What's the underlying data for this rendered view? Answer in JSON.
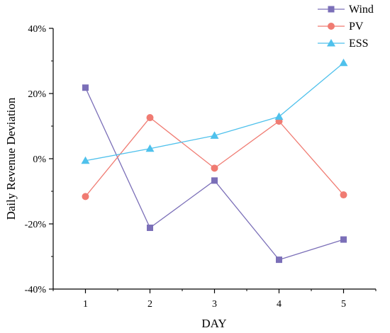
{
  "chart_data": {
    "type": "line",
    "x": [
      1,
      2,
      3,
      4,
      5
    ],
    "xticks": [
      "1",
      "2",
      "3",
      "4",
      "5"
    ],
    "xlim": [
      0.5,
      5.5
    ],
    "ylim": [
      -40,
      40
    ],
    "yticks": [
      "40%",
      "20%",
      "0%",
      "-20%",
      "-40%"
    ],
    "ytick_values": [
      40,
      20,
      0,
      -20,
      -40
    ],
    "xlabel": "DAY",
    "ylabel": "Daily Revenue Deviation",
    "grid": false,
    "legend_position": "top-right",
    "series": [
      {
        "name": "Wind",
        "color": "#7b6fb8",
        "marker": "square",
        "values": [
          21.8,
          -21.2,
          -6.7,
          -31.0,
          -24.8
        ]
      },
      {
        "name": "PV",
        "color": "#f07b72",
        "marker": "circle",
        "values": [
          -11.6,
          12.6,
          -2.9,
          11.5,
          -11.1
        ]
      },
      {
        "name": "ESS",
        "color": "#4fc1ec",
        "marker": "triangle",
        "values": [
          -0.6,
          3.1,
          7.1,
          12.9,
          29.4
        ]
      }
    ]
  }
}
